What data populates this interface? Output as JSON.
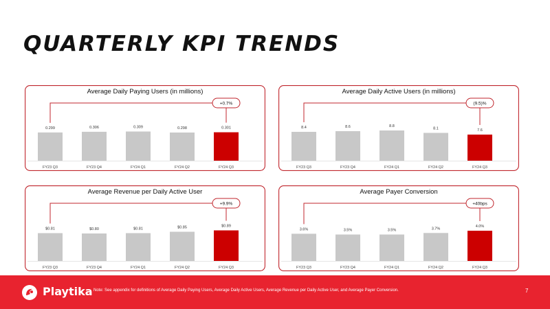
{
  "page": {
    "title": "QUARTERLY KPI TRENDS",
    "note": "Note: See appendix for definitions of Average Daily Paying Users, Average Daily Active Users, Average Revenue per Daily Active User, and Average Payer Conversion.",
    "page_number": "7",
    "brand": "Playtika"
  },
  "colors": {
    "bar": "#c8c8c8",
    "highlight": "#cc0000",
    "border": "#c0262d",
    "footer": "#e8232f"
  },
  "chart_data": [
    {
      "type": "bar",
      "title": "Average Daily Paying Users (in millions)",
      "categories": [
        "FY23 Q3",
        "FY23 Q4",
        "FY24 Q1",
        "FY24 Q2",
        "FY24 Q3"
      ],
      "values": [
        0.299,
        0.306,
        0.309,
        0.298,
        0.301
      ],
      "value_labels": [
        "0.299",
        "0.306",
        "0.309",
        "0.298",
        "0.301"
      ],
      "highlight_index": 4,
      "change_label": "+0.7%",
      "ylim": [
        0,
        0.4
      ]
    },
    {
      "type": "bar",
      "title": "Average Daily Active Users (in millions)",
      "categories": [
        "FY23 Q3",
        "FY23 Q4",
        "FY24 Q1",
        "FY24 Q2",
        "FY24 Q3"
      ],
      "values": [
        8.4,
        8.6,
        8.8,
        8.1,
        7.6
      ],
      "value_labels": [
        "8.4",
        "8.6",
        "8.8",
        "8.1",
        "7.6"
      ],
      "highlight_index": 4,
      "change_label": "(9.5)%",
      "ylim": [
        0,
        11
      ]
    },
    {
      "type": "bar",
      "title": "Average Revenue per Daily Active User",
      "categories": [
        "FY23 Q3",
        "FY23 Q4",
        "FY24 Q1",
        "FY24 Q2",
        "FY24 Q3"
      ],
      "values": [
        0.81,
        0.8,
        0.81,
        0.85,
        0.89
      ],
      "value_labels": [
        "$0.81",
        "$0.80",
        "$0.81",
        "$0.85",
        "$0.89"
      ],
      "highlight_index": 4,
      "change_label": "+9.9%",
      "ylim": [
        0,
        1.1
      ]
    },
    {
      "type": "bar",
      "title": "Average Payer Conversion",
      "categories": [
        "FY23 Q3",
        "FY23 Q4",
        "FY24 Q1",
        "FY24 Q2",
        "FY24 Q3"
      ],
      "values": [
        3.6,
        3.5,
        3.5,
        3.7,
        4.0
      ],
      "value_labels": [
        "3.6%",
        "3.5%",
        "3.5%",
        "3.7%",
        "4.0%"
      ],
      "highlight_index": 4,
      "change_label": "+40bps",
      "ylim": [
        0,
        5
      ]
    }
  ]
}
